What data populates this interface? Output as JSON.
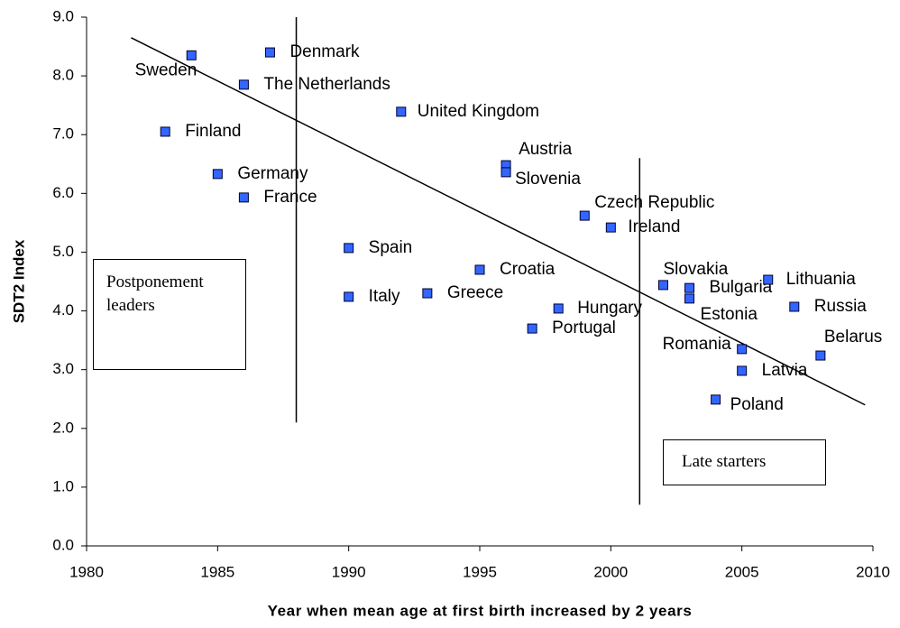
{
  "chart_data": {
    "type": "scatter",
    "x_label": "Year when mean age at first birth increased by 2 years",
    "y_label": "SDT2 Index",
    "color": "#3366ff",
    "xlim": [
      1980,
      2010
    ],
    "ylim": [
      0,
      9
    ],
    "xticks": [
      1980,
      1985,
      1990,
      1995,
      2000,
      2005,
      2010
    ],
    "yticks": [
      {
        "value": 0,
        "label": "0.0"
      },
      {
        "value": 1,
        "label": "1.0"
      },
      {
        "value": 2,
        "label": "2.0"
      },
      {
        "value": 3,
        "label": "3.0"
      },
      {
        "value": 4,
        "label": "4.0"
      },
      {
        "value": 5,
        "label": "5.0"
      },
      {
        "value": 6,
        "label": "6.0"
      },
      {
        "value": 7,
        "label": "7.0"
      },
      {
        "value": 8,
        "label": "8.0"
      },
      {
        "value": 9,
        "label": "9.0"
      }
    ],
    "labels": [
      "Sweden",
      "Denmark",
      "The Netherlands",
      "United Kingdom",
      "Finland",
      "Germany",
      "France",
      "Austria",
      "Slovenia",
      "Czech Republic",
      "Ireland",
      "Spain",
      "Croatia",
      "Italy",
      "Greece",
      "Hungary",
      "Portugal",
      "Slovakia",
      "Bulgaria",
      "Estonia",
      "Lithuania",
      "Russia",
      "Romania",
      "Latvia",
      "Belarus",
      "Poland"
    ],
    "x": [
      1984,
      1987,
      1986,
      1992,
      1983,
      1985,
      1986,
      1996,
      1996,
      1999,
      2000,
      1990,
      1995,
      1990,
      1993,
      1998,
      1997,
      2002,
      2003,
      2003,
      2006,
      2007,
      2005,
      2005,
      2008,
      2004
    ],
    "y": [
      8.35,
      8.4,
      7.85,
      7.39,
      7.05,
      6.33,
      5.93,
      6.48,
      6.36,
      5.62,
      5.42,
      5.07,
      4.7,
      4.24,
      4.3,
      4.04,
      3.7,
      4.44,
      4.39,
      4.21,
      4.53,
      4.07,
      3.35,
      2.98,
      3.24,
      2.49
    ],
    "trendline": {
      "x": [
        1981.7,
        2009.7
      ],
      "y": [
        8.65,
        2.4
      ]
    },
    "reference_lines": [
      {
        "x": [
          1988,
          1988
        ],
        "y": [
          2.1,
          9.0
        ]
      },
      {
        "x": [
          2001.1,
          2001.1
        ],
        "y": [
          0.7,
          6.6
        ]
      }
    ],
    "annotations": [
      "Postponement leaders",
      "Late starters"
    ]
  }
}
